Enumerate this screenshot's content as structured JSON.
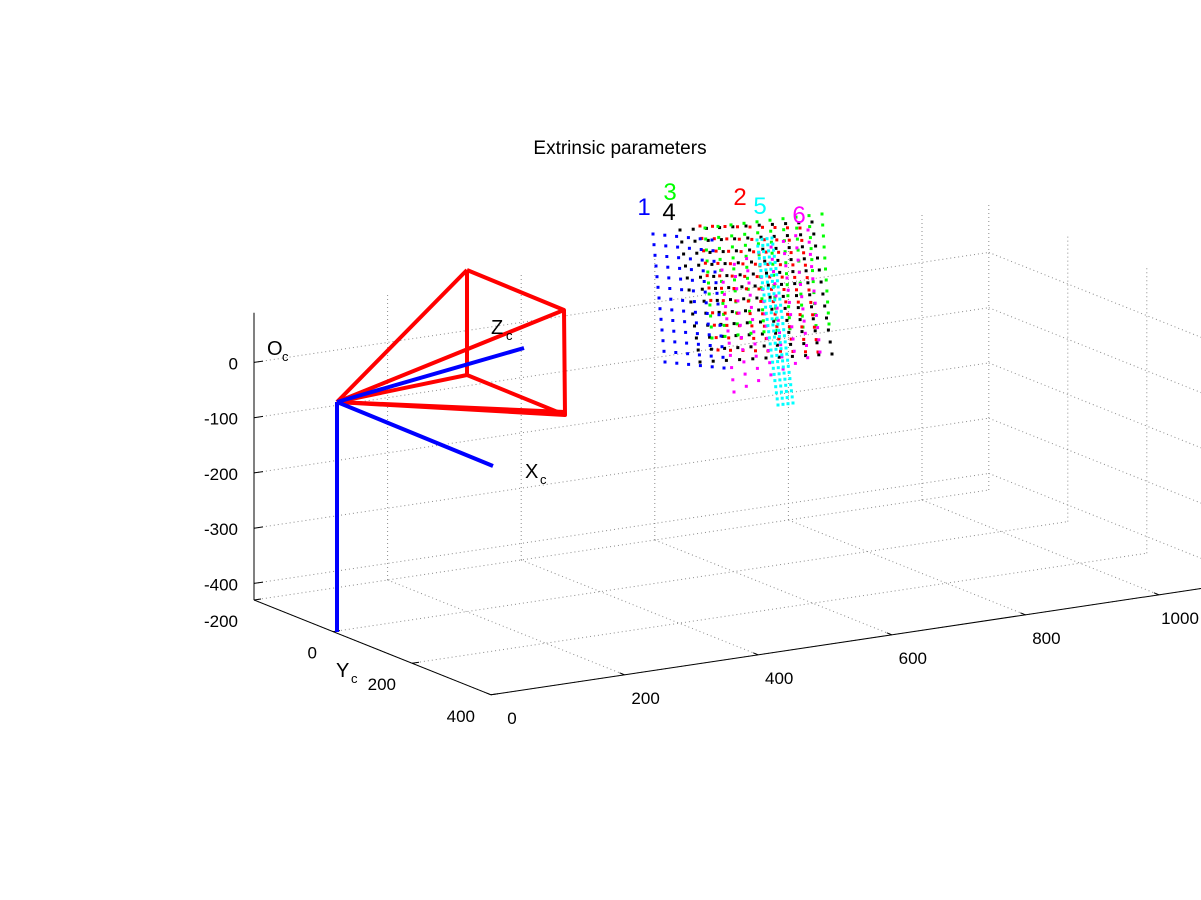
{
  "chart_data": {
    "type": "scatter",
    "title": "Extrinsic parameters",
    "view": "3d",
    "grid": true,
    "axes": {
      "z": {
        "range": [
          -430,
          90
        ],
        "ticks": [
          0,
          -100,
          -200,
          -300,
          -400
        ]
      },
      "y": {
        "range": [
          -200,
          400
        ],
        "ticks": [
          -200,
          0,
          200,
          400
        ]
      },
      "x": {
        "range": [
          0,
          1100
        ],
        "ticks": [
          0,
          200,
          400,
          600,
          800,
          1000
        ]
      }
    },
    "camera_labels": {
      "origin": "O",
      "x": "X",
      "y": "Y",
      "z": "Z",
      "subscript": "c"
    },
    "colors": {
      "frustum": "#ff0000",
      "camera_axes": "#0000ff",
      "grid": "#8c8c8c",
      "axis": "#000000"
    },
    "series": [
      {
        "name": "1",
        "color": "#0000ff"
      },
      {
        "name": "2",
        "color": "#ff0000"
      },
      {
        "name": "3",
        "color": "#00ff00"
      },
      {
        "name": "4",
        "color": "#000000"
      },
      {
        "name": "5",
        "color": "#00ffff"
      },
      {
        "name": "6",
        "color": "#ff00ff"
      }
    ]
  }
}
